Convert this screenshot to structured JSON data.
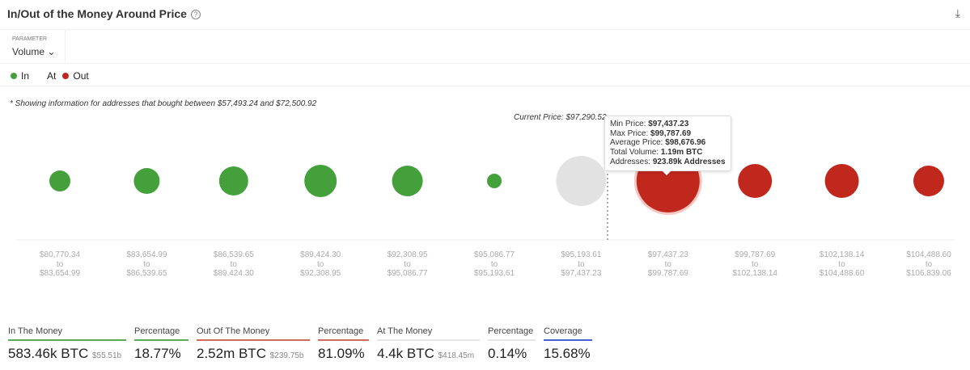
{
  "header": {
    "title": "In/Out of the Money Around Price",
    "help_icon": "question-circle-icon",
    "download_icon": "download-icon"
  },
  "parameter": {
    "label": "PARAMETER",
    "value": "Volume"
  },
  "legend": [
    {
      "label": "In",
      "color": "#43a03a"
    },
    {
      "label": "At",
      "color": ""
    },
    {
      "label": "Out",
      "color": "#c0281e"
    }
  ],
  "note": "* Showing information for addresses that bought between $57,493.24 and $72,500.92",
  "chart_data": {
    "type": "bubble",
    "current_price_label": "Current Price: $97,290.52",
    "categories": [
      {
        "from": "$80,770.34",
        "to": "$83,654.99",
        "status": "in"
      },
      {
        "from": "$83,654.99",
        "to": "$86,539.65",
        "status": "in"
      },
      {
        "from": "$86,539.65",
        "to": "$89,424.30",
        "status": "in"
      },
      {
        "from": "$89,424.30",
        "to": "$92,308.95",
        "status": "in"
      },
      {
        "from": "$92,308.95",
        "to": "$95,086.77",
        "status": "in"
      },
      {
        "from": "$95,086.77",
        "to": "$95,193.61",
        "status": "in"
      },
      {
        "from": "$95,193.61",
        "to": "$97,437.23",
        "status": "at"
      },
      {
        "from": "$97,437.23",
        "to": "$99,787.69",
        "status": "out"
      },
      {
        "from": "$99,787.69",
        "to": "$102,138.14",
        "status": "out"
      },
      {
        "from": "$102,138.14",
        "to": "$104,488.60",
        "status": "out"
      },
      {
        "from": "$104,488.60",
        "to": "$106,839.06",
        "status": "out"
      }
    ],
    "tooltip": {
      "min_label": "Min Price:",
      "min": "$97,437.23",
      "max_label": "Max Price:",
      "max": "$99,787.69",
      "avg_label": "Average Price:",
      "avg": "$98,676.96",
      "vol_label": "Total Volume:",
      "vol": "1.19m BTC",
      "addr_label": "Addresses:",
      "addr": "923.89k Addresses"
    },
    "colors": {
      "in": "#43a03a",
      "at": "#e2e2e2",
      "out": "#c0281e"
    }
  },
  "stats": [
    {
      "label": "In The Money",
      "value": "583.46k BTC",
      "sub": "$55.51b",
      "color": "#5aab55"
    },
    {
      "label": "Percentage",
      "value": "18.77%",
      "sub": "",
      "color": "#5aab55"
    },
    {
      "label": "Out Of The Money",
      "value": "2.52m BTC",
      "sub": "$239.75b",
      "color": "#d06a5a"
    },
    {
      "label": "Percentage",
      "value": "81.09%",
      "sub": "",
      "color": "#d06a5a"
    },
    {
      "label": "At The Money",
      "value": "4.4k BTC",
      "sub": "$418.45m",
      "color": "#e6e6e6"
    },
    {
      "label": "Percentage",
      "value": "0.14%",
      "sub": "",
      "color": "#e6e6e6"
    },
    {
      "label": "Coverage",
      "value": "15.68%",
      "sub": "",
      "color": "#4a5fd0"
    }
  ]
}
